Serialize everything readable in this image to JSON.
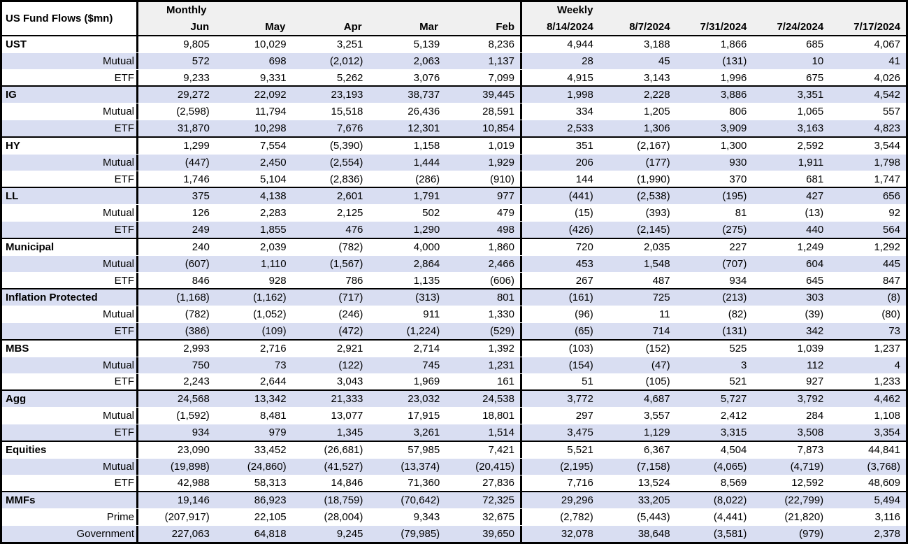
{
  "colors": {
    "stripe": "#D9DEF2",
    "header_bg": "#F0F0F0",
    "border": "#000000",
    "text": "#000000"
  },
  "chart_data": {
    "type": "table",
    "title": "US Fund Flows ($mn)",
    "column_groups": [
      {
        "label": "Monthly",
        "columns": [
          "Jun",
          "May",
          "Apr",
          "Mar",
          "Feb"
        ]
      },
      {
        "label": "Weekly",
        "columns": [
          "8/14/2024",
          "8/7/2024",
          "7/31/2024",
          "7/24/2024",
          "7/17/2024"
        ]
      }
    ],
    "rows": [
      {
        "label": "UST",
        "type": "section",
        "values": [
          "9,805",
          "10,029",
          "3,251",
          "5,139",
          "8,236",
          "4,944",
          "3,188",
          "1,866",
          "685",
          "4,067"
        ]
      },
      {
        "label": "Mutual",
        "type": "sub",
        "values": [
          "572",
          "698",
          "(2,012)",
          "2,063",
          "1,137",
          "28",
          "45",
          "(131)",
          "10",
          "41"
        ]
      },
      {
        "label": "ETF",
        "type": "sub",
        "values": [
          "9,233",
          "9,331",
          "5,262",
          "3,076",
          "7,099",
          "4,915",
          "3,143",
          "1,996",
          "675",
          "4,026"
        ]
      },
      {
        "label": "IG",
        "type": "section",
        "values": [
          "29,272",
          "22,092",
          "23,193",
          "38,737",
          "39,445",
          "1,998",
          "2,228",
          "3,886",
          "3,351",
          "4,542"
        ]
      },
      {
        "label": "Mutual",
        "type": "sub",
        "values": [
          "(2,598)",
          "11,794",
          "15,518",
          "26,436",
          "28,591",
          "334",
          "1,205",
          "806",
          "1,065",
          "557"
        ]
      },
      {
        "label": "ETF",
        "type": "sub",
        "values": [
          "31,870",
          "10,298",
          "7,676",
          "12,301",
          "10,854",
          "2,533",
          "1,306",
          "3,909",
          "3,163",
          "4,823"
        ]
      },
      {
        "label": "HY",
        "type": "section",
        "values": [
          "1,299",
          "7,554",
          "(5,390)",
          "1,158",
          "1,019",
          "351",
          "(2,167)",
          "1,300",
          "2,592",
          "3,544"
        ]
      },
      {
        "label": "Mutual",
        "type": "sub",
        "values": [
          "(447)",
          "2,450",
          "(2,554)",
          "1,444",
          "1,929",
          "206",
          "(177)",
          "930",
          "1,911",
          "1,798"
        ]
      },
      {
        "label": "ETF",
        "type": "sub",
        "values": [
          "1,746",
          "5,104",
          "(2,836)",
          "(286)",
          "(910)",
          "144",
          "(1,990)",
          "370",
          "681",
          "1,747"
        ]
      },
      {
        "label": "LL",
        "type": "section",
        "values": [
          "375",
          "4,138",
          "2,601",
          "1,791",
          "977",
          "(441)",
          "(2,538)",
          "(195)",
          "427",
          "656"
        ]
      },
      {
        "label": "Mutual",
        "type": "sub",
        "values": [
          "126",
          "2,283",
          "2,125",
          "502",
          "479",
          "(15)",
          "(393)",
          "81",
          "(13)",
          "92"
        ]
      },
      {
        "label": "ETF",
        "type": "sub",
        "values": [
          "249",
          "1,855",
          "476",
          "1,290",
          "498",
          "(426)",
          "(2,145)",
          "(275)",
          "440",
          "564"
        ]
      },
      {
        "label": "Municipal",
        "type": "section",
        "values": [
          "240",
          "2,039",
          "(782)",
          "4,000",
          "1,860",
          "720",
          "2,035",
          "227",
          "1,249",
          "1,292"
        ]
      },
      {
        "label": "Mutual",
        "type": "sub",
        "values": [
          "(607)",
          "1,110",
          "(1,567)",
          "2,864",
          "2,466",
          "453",
          "1,548",
          "(707)",
          "604",
          "445"
        ]
      },
      {
        "label": "ETF",
        "type": "sub",
        "values": [
          "846",
          "928",
          "786",
          "1,135",
          "(606)",
          "267",
          "487",
          "934",
          "645",
          "847"
        ]
      },
      {
        "label": "Inflation Protected",
        "type": "section",
        "values": [
          "(1,168)",
          "(1,162)",
          "(717)",
          "(313)",
          "801",
          "(161)",
          "725",
          "(213)",
          "303",
          "(8)"
        ]
      },
      {
        "label": "Mutual",
        "type": "sub",
        "values": [
          "(782)",
          "(1,052)",
          "(246)",
          "911",
          "1,330",
          "(96)",
          "11",
          "(82)",
          "(39)",
          "(80)"
        ]
      },
      {
        "label": "ETF",
        "type": "sub",
        "values": [
          "(386)",
          "(109)",
          "(472)",
          "(1,224)",
          "(529)",
          "(65)",
          "714",
          "(131)",
          "342",
          "73"
        ]
      },
      {
        "label": "MBS",
        "type": "section",
        "values": [
          "2,993",
          "2,716",
          "2,921",
          "2,714",
          "1,392",
          "(103)",
          "(152)",
          "525",
          "1,039",
          "1,237"
        ]
      },
      {
        "label": "Mutual",
        "type": "sub",
        "values": [
          "750",
          "73",
          "(122)",
          "745",
          "1,231",
          "(154)",
          "(47)",
          "3",
          "112",
          "4"
        ]
      },
      {
        "label": "ETF",
        "type": "sub",
        "values": [
          "2,243",
          "2,644",
          "3,043",
          "1,969",
          "161",
          "51",
          "(105)",
          "521",
          "927",
          "1,233"
        ]
      },
      {
        "label": "Agg",
        "type": "section",
        "values": [
          "24,568",
          "13,342",
          "21,333",
          "23,032",
          "24,538",
          "3,772",
          "4,687",
          "5,727",
          "3,792",
          "4,462"
        ]
      },
      {
        "label": "Mutual",
        "type": "sub",
        "values": [
          "(1,592)",
          "8,481",
          "13,077",
          "17,915",
          "18,801",
          "297",
          "3,557",
          "2,412",
          "284",
          "1,108"
        ]
      },
      {
        "label": "ETF",
        "type": "sub",
        "values": [
          "934",
          "979",
          "1,345",
          "3,261",
          "1,514",
          "3,475",
          "1,129",
          "3,315",
          "3,508",
          "3,354"
        ]
      },
      {
        "label": "Equities",
        "type": "section",
        "values": [
          "23,090",
          "33,452",
          "(26,681)",
          "57,985",
          "7,421",
          "5,521",
          "6,367",
          "4,504",
          "7,873",
          "44,841"
        ]
      },
      {
        "label": "Mutual",
        "type": "sub",
        "values": [
          "(19,898)",
          "(24,860)",
          "(41,527)",
          "(13,374)",
          "(20,415)",
          "(2,195)",
          "(7,158)",
          "(4,065)",
          "(4,719)",
          "(3,768)"
        ]
      },
      {
        "label": "ETF",
        "type": "sub",
        "values": [
          "42,988",
          "58,313",
          "14,846",
          "71,360",
          "27,836",
          "7,716",
          "13,524",
          "8,569",
          "12,592",
          "48,609"
        ]
      },
      {
        "label": "MMFs",
        "type": "section",
        "values": [
          "19,146",
          "86,923",
          "(18,759)",
          "(70,642)",
          "72,325",
          "29,296",
          "33,205",
          "(8,022)",
          "(22,799)",
          "5,494"
        ]
      },
      {
        "label": "Prime",
        "type": "sub",
        "values": [
          "(207,917)",
          "22,105",
          "(28,004)",
          "9,343",
          "32,675",
          "(2,782)",
          "(5,443)",
          "(4,441)",
          "(21,820)",
          "3,116"
        ]
      },
      {
        "label": "Government",
        "type": "sub",
        "values": [
          "227,063",
          "64,818",
          "9,245",
          "(79,985)",
          "39,650",
          "32,078",
          "38,648",
          "(3,581)",
          "(979)",
          "2,378"
        ]
      }
    ]
  }
}
